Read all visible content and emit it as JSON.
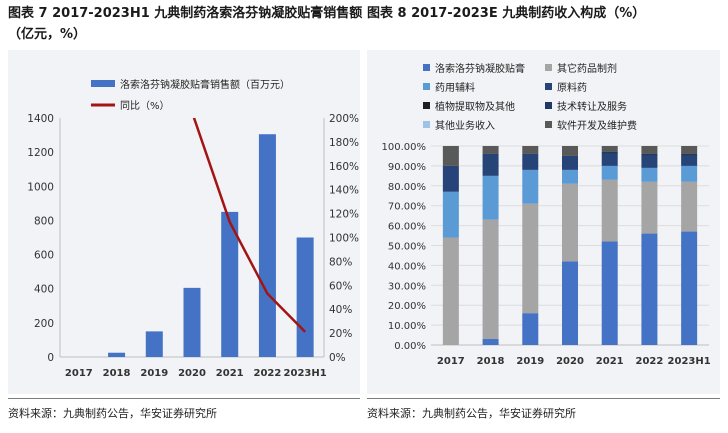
{
  "figures": {
    "left": {
      "title_line1": "图表 7 2017-2023H1 九典制药洛索洛芬钠凝胶贴膏销售额",
      "title_line2": "（亿元，%）",
      "source": "资料来源：九典制药公告，华安证券研究所"
    },
    "right": {
      "title": "图表 8 2017-2023E 九典制药收入构成（%）",
      "source": "资料来源：九典制药公告，华安证券研究所"
    }
  },
  "colors": {
    "bar_blue": "#4472c4",
    "line_red": "#a31515",
    "panel_bg": "#f1f3f6"
  },
  "chart_data": [
    {
      "type": "bar",
      "categories": [
        "2017",
        "2018",
        "2019",
        "2020",
        "2021",
        "2022",
        "2023H1"
      ],
      "series": [
        {
          "name": "洛索洛芬钠凝胶贴膏销售额（百万元）",
          "type": "bar",
          "axis": "left",
          "values": [
            0,
            25,
            150,
            405,
            850,
            1305,
            700
          ]
        },
        {
          "name": "同比（%）",
          "type": "line",
          "axis": "right",
          "values": [
            null,
            null,
            null,
            205,
            113,
            53,
            21
          ]
        }
      ],
      "ylim_left": [
        0,
        1400
      ],
      "ylim_right": [
        0,
        200
      ],
      "yticks_left": [
        "0",
        "200",
        "400",
        "600",
        "800",
        "1000",
        "1200",
        "1400"
      ],
      "yticks_right": [
        "0%",
        "20%",
        "40%",
        "60%",
        "80%",
        "100%",
        "120%",
        "140%",
        "160%",
        "180%",
        "200%"
      ],
      "legend_position": "top",
      "grid": false
    },
    {
      "type": "bar",
      "stacked": true,
      "categories": [
        "2017",
        "2018",
        "2019",
        "2020",
        "2021",
        "2022",
        "2023H1"
      ],
      "series": [
        {
          "name": "洛索洛芬钠凝胶贴膏",
          "color": "#4472c4",
          "values": [
            0,
            3,
            16,
            42,
            52,
            56,
            57
          ]
        },
        {
          "name": "其它药品制剂",
          "color": "#a5a5a5",
          "values": [
            54,
            60,
            55,
            39,
            31,
            26,
            25
          ]
        },
        {
          "name": "药用辅料",
          "color": "#5b9bd5",
          "values": [
            23,
            22,
            17,
            7,
            7,
            7,
            8
          ]
        },
        {
          "name": "原料药",
          "color": "#264478",
          "values": [
            13,
            11,
            8,
            7,
            6,
            6,
            5
          ]
        },
        {
          "name": "植物提取物及其他",
          "color": "#1f1f1f",
          "values": [
            0,
            0,
            0,
            0,
            0,
            0,
            0
          ]
        },
        {
          "name": "技术转让及服务",
          "color": "#203864",
          "values": [
            0,
            0,
            0,
            0,
            1,
            1,
            1
          ]
        },
        {
          "name": "其他业务收入",
          "color": "#9dc3e6",
          "values": [
            0,
            0,
            0,
            0,
            0,
            0,
            0
          ]
        },
        {
          "name": "软件开发及维护费",
          "color": "#595959",
          "values": [
            10,
            4,
            4,
            5,
            3,
            4,
            4
          ]
        }
      ],
      "ylim": [
        0,
        100
      ],
      "yticks": [
        "0.00%",
        "10.00%",
        "20.00%",
        "30.00%",
        "40.00%",
        "50.00%",
        "60.00%",
        "70.00%",
        "80.00%",
        "90.00%",
        "100.00%"
      ],
      "legend_position": "top",
      "grid": true
    }
  ]
}
